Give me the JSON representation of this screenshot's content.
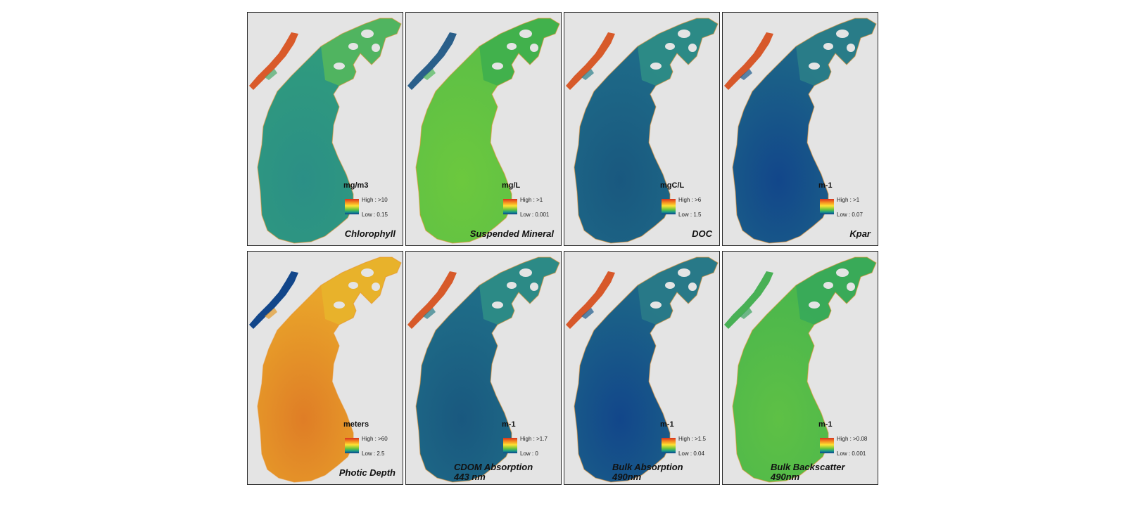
{
  "panels": [
    {
      "title": "Chlorophyll",
      "subtitle": "",
      "unit": "mg/m3",
      "high": "High : >10",
      "low": "Low : 0.15",
      "colors": {
        "lake": "#2f9a7e",
        "center": "#2b8f86",
        "north": "#56b85a",
        "arm": "#d95a2a",
        "bay": "#4aa96a"
      }
    },
    {
      "title": "Suspended Mineral",
      "subtitle": "",
      "unit": "mg/L",
      "high": "High : >1",
      "low": "Low : 0.001",
      "colors": {
        "lake": "#5ec045",
        "center": "#6cc83e",
        "north": "#3cae4e",
        "arm": "#2a5f8a",
        "bay": "#4fb85a"
      }
    },
    {
      "title": "DOC",
      "subtitle": "",
      "unit": "mgC/L",
      "high": "High : >6",
      "low": "Low : 1.5",
      "colors": {
        "lake": "#1e6a88",
        "center": "#19587f",
        "north": "#2f8f86",
        "arm": "#d75a2a",
        "bay": "#2b7f8a"
      }
    },
    {
      "title": "Kpar",
      "subtitle": "",
      "unit": "m-1",
      "high": "High : >1",
      "low": "Low : 0.07",
      "colors": {
        "lake": "#1c6488",
        "center": "#12468a",
        "north": "#2b8088",
        "arm": "#d7582a",
        "bay": "#1d5a8c"
      }
    },
    {
      "title": "Photic Depth",
      "subtitle": "",
      "unit": "meters",
      "high": "High : >60",
      "low": "Low : 2.5",
      "colors": {
        "lake": "#e9a42a",
        "center": "#df7d26",
        "north": "#e7b52c",
        "arm": "#12468a",
        "bay": "#e29a2a"
      }
    },
    {
      "title": "CDOM Absorption",
      "subtitle": "443 nm",
      "unit": "m-1",
      "high": "High : >1.7",
      "low": "Low : 0",
      "colors": {
        "lake": "#1f6d88",
        "center": "#19587f",
        "north": "#2f8f86",
        "arm": "#d75a2a",
        "bay": "#2a7c88"
      }
    },
    {
      "title": "Bulk Absorption",
      "subtitle": "490nm",
      "unit": "m-1",
      "high": "High : >1.5",
      "low": "Low : 0.04",
      "colors": {
        "lake": "#1c6488",
        "center": "#12468a",
        "north": "#2a7c88",
        "arm": "#d7582a",
        "bay": "#1d5a8c"
      }
    },
    {
      "title": "Bulk Backscatter",
      "subtitle": "490nm",
      "unit": "m-1",
      "high": "High : >0.08",
      "low": "Low : 0.001",
      "colors": {
        "lake": "#4cb74c",
        "center": "#5ec045",
        "north": "#36a85a",
        "arm": "#48b055",
        "bay": "#3aa35e"
      }
    }
  ]
}
